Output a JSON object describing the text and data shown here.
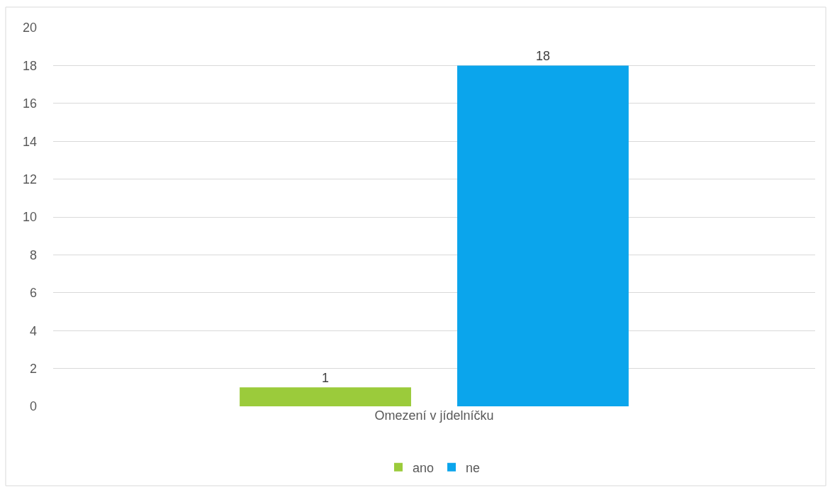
{
  "chart_data": {
    "type": "bar",
    "categories": [
      "Omezení v jídelníčku"
    ],
    "series": [
      {
        "name": "ano",
        "color": "#9bcb3b",
        "values": [
          1
        ]
      },
      {
        "name": "ne",
        "color": "#0ba5ec",
        "values": [
          18
        ]
      }
    ],
    "ylim": [
      0,
      20
    ],
    "yticks": [
      0,
      2,
      4,
      6,
      8,
      10,
      12,
      14,
      16,
      18,
      20
    ],
    "grid": "y",
    "legend": "bottom",
    "data_labels": true
  }
}
